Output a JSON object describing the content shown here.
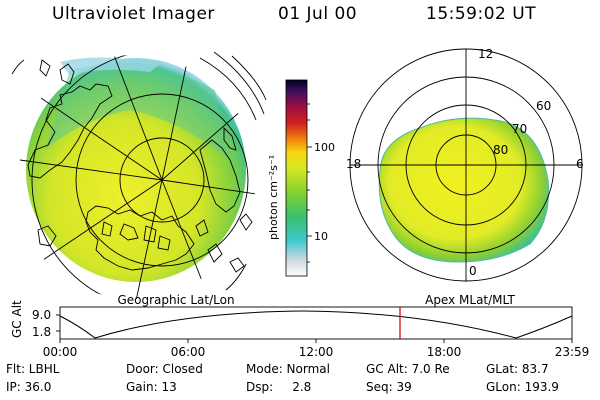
{
  "header": {
    "title": "Ultraviolet Imager",
    "date": "01 Jul 00",
    "time": "15:59:02 UT"
  },
  "colorbar": {
    "label": "photon cm⁻²s⁻¹",
    "ticks": [
      "100",
      "10"
    ],
    "scale": "log"
  },
  "left_panel": {
    "caption": "Geographic Lat/Lon"
  },
  "right_panel": {
    "caption": "Apex MLat/MLT",
    "lat_labels": [
      "60",
      "70",
      "80"
    ],
    "mlt_labels": [
      "12",
      "18",
      "6",
      "0"
    ]
  },
  "orbit_plot": {
    "ylabel": "GC Alt",
    "yticks": [
      "9.0",
      "1.8"
    ],
    "xticks": [
      "00:00",
      "06:00",
      "12:00",
      "18:00",
      "23:59"
    ],
    "marker_time": "15:59"
  },
  "info": {
    "flt": "Flt: LBHL",
    "door": "Door: Closed",
    "mode": "Mode: Normal",
    "gcalt": "GC Alt: 7.0 Re",
    "glat": "GLat: 83.7",
    "ip": "IP: 36.0",
    "gain": "Gain: 13",
    "dsp": "Dsp:     2.8",
    "seq": "Seq: 39",
    "glon": "GLon: 193.9"
  },
  "colors": {
    "aurora_low": "#3ec8c8",
    "aurora_mid": "#66cc33",
    "aurora_high": "#e8ee22",
    "marker": "#cc0000"
  }
}
